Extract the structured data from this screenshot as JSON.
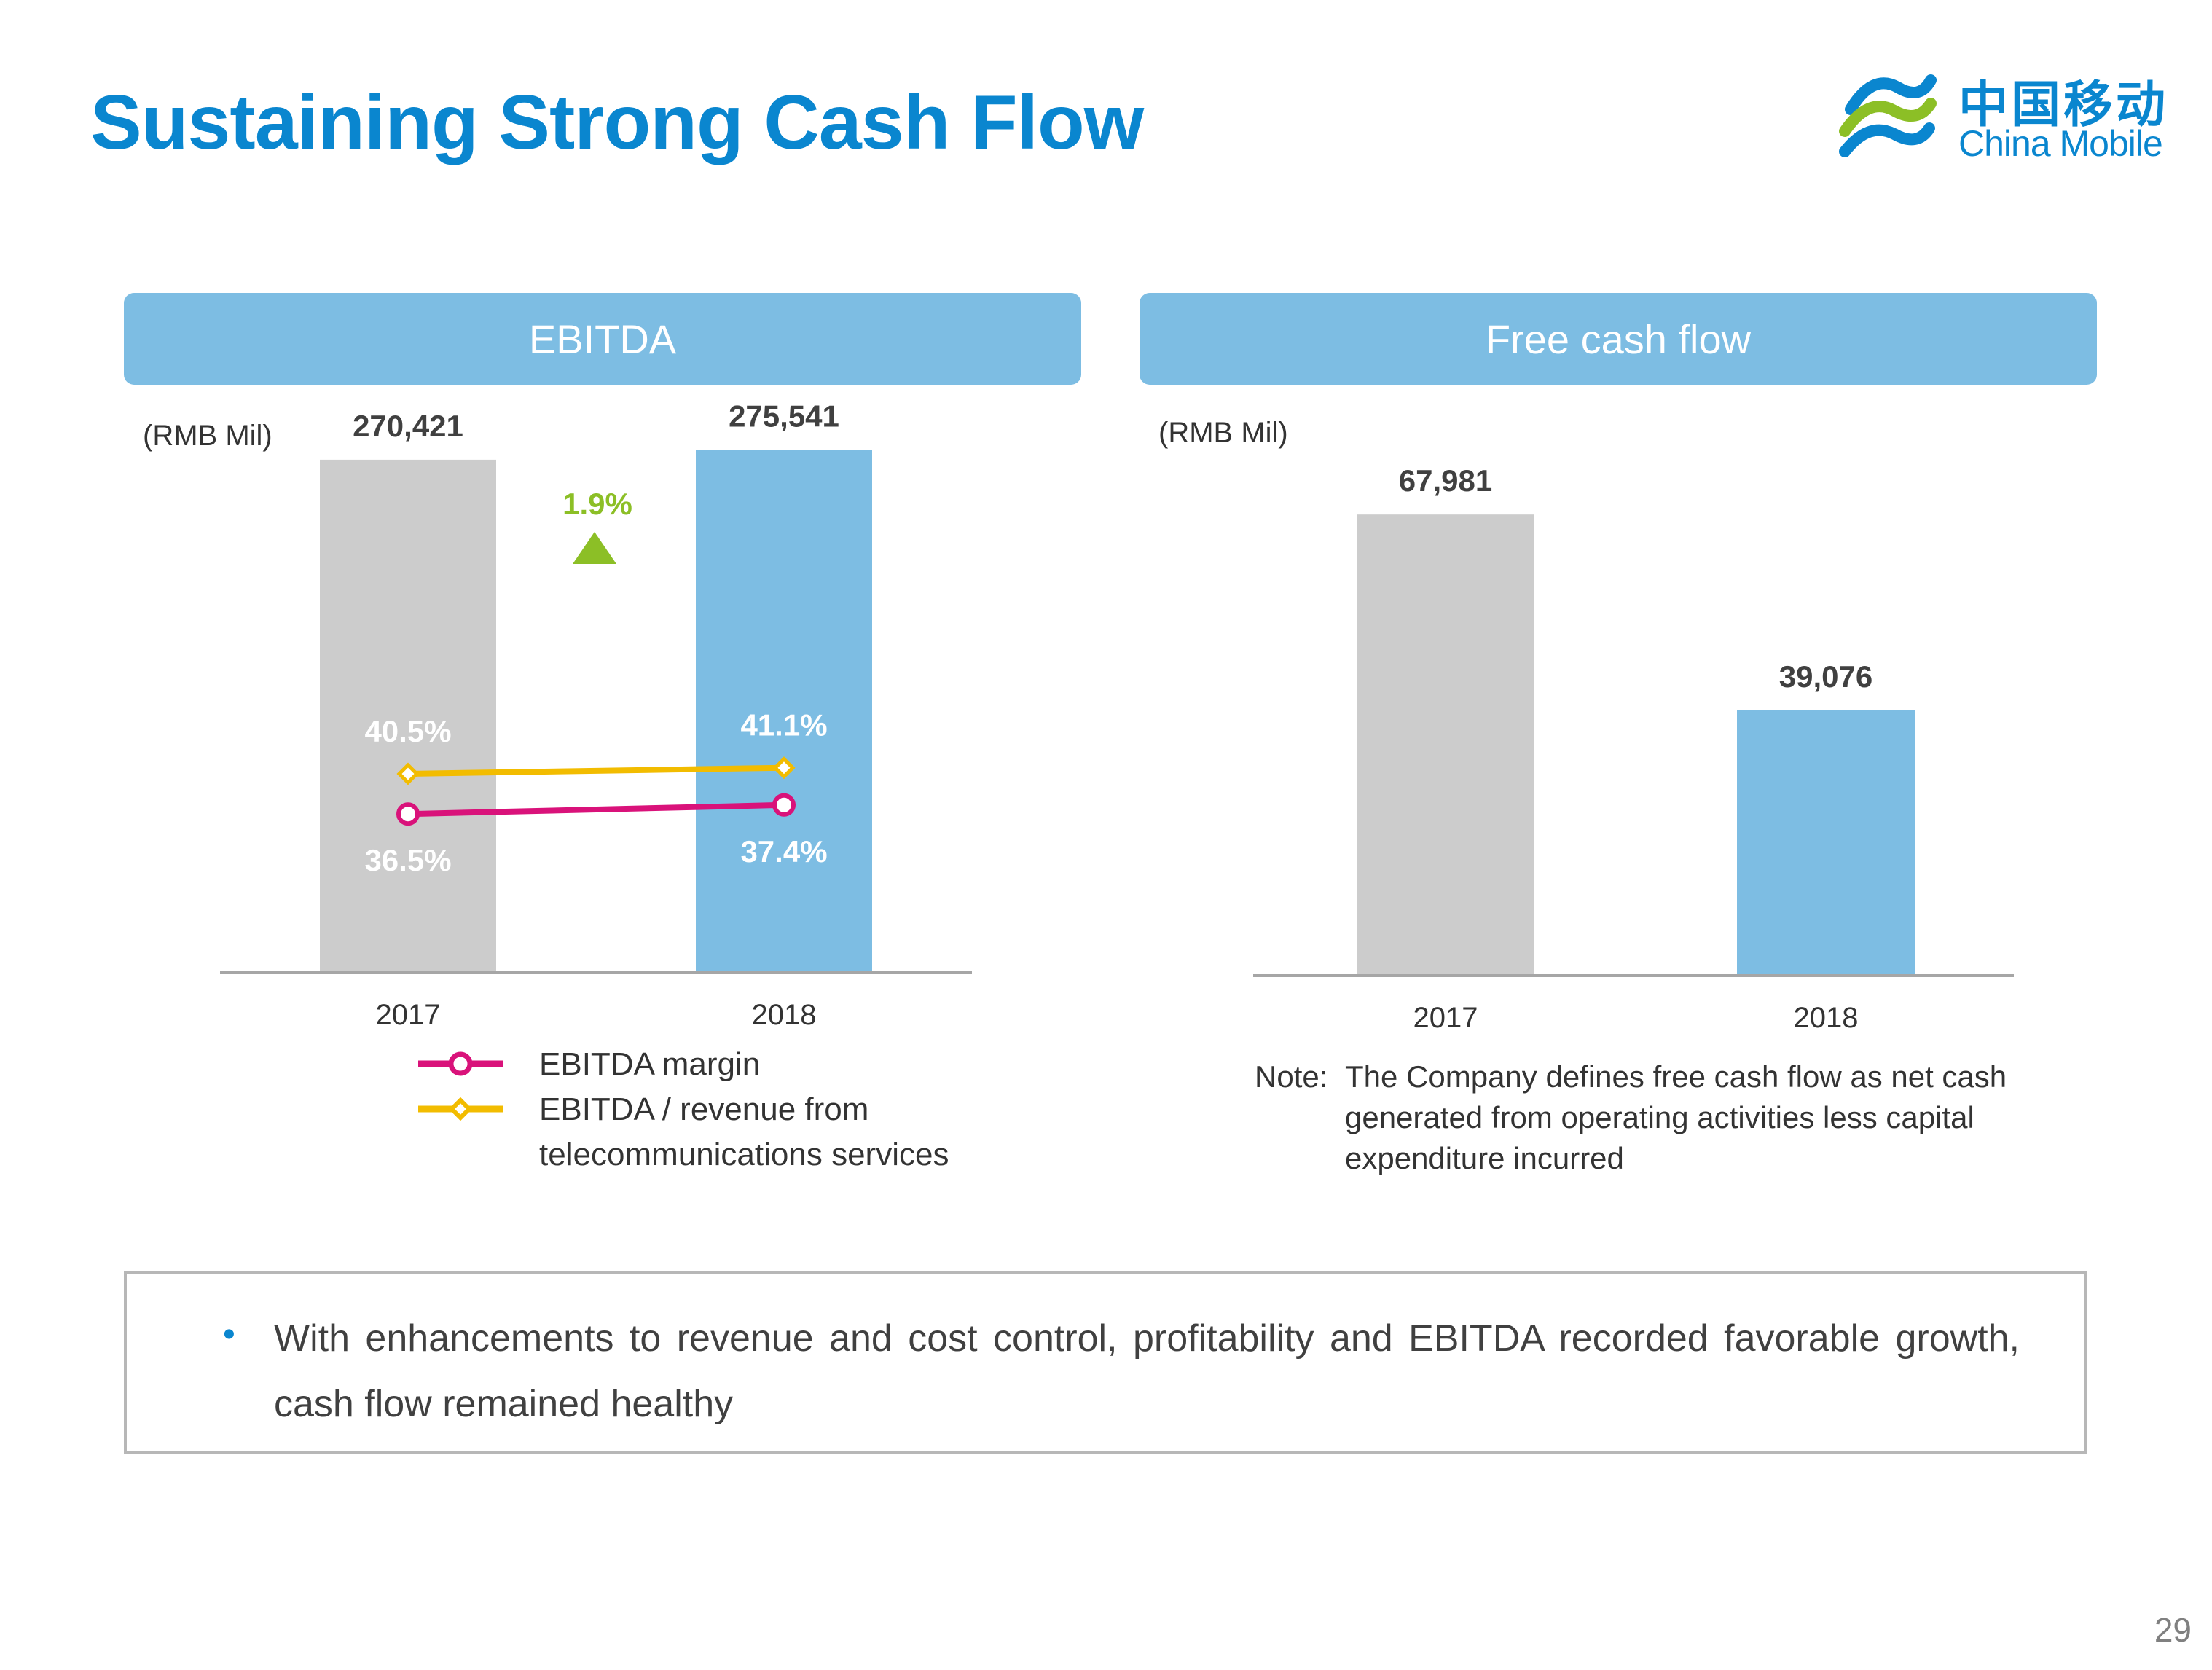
{
  "title": "Sustaining Strong Cash Flow",
  "logo": {
    "cn": "中国移动",
    "en": "China Mobile"
  },
  "page_number": "29",
  "colors": {
    "title_blue": "#0a86cf",
    "header_blue": "#7dbde3",
    "bar_gray": "#cccccc",
    "bar_blue": "#7dbde3",
    "margin_line": "#d9127a",
    "ratio_line": "#f2bc00",
    "growth_green": "#8cbf26"
  },
  "ebitda_panel": {
    "header": "EBITDA",
    "unit": "(RMB Mil)"
  },
  "fcf_panel": {
    "header": "Free cash flow",
    "unit": "(RMB Mil)"
  },
  "legend": [
    {
      "label": "EBITDA margin",
      "color": "#d9127a",
      "marker": "circle"
    },
    {
      "label": "EBITDA / revenue from\ntelecommunications  services",
      "color": "#f2bc00",
      "marker": "diamond"
    }
  ],
  "note": {
    "label": "Note:",
    "text": "The Company defines free cash flow as net cash generated from operating activities less capital expenditure incurred"
  },
  "summary": "With enhancements to revenue and cost control, profitability and EBITDA recorded favorable growth, cash flow remained healthy",
  "chart_data": [
    {
      "type": "bar",
      "categories": [
        "2017",
        "2018"
      ],
      "series": [
        {
          "values": [
            270421,
            275541
          ],
          "labels": [
            "270,421",
            "275,541"
          ],
          "colors": [
            "#cccccc",
            "#7dbde3"
          ]
        }
      ],
      "ylim": [
        0,
        290000
      ],
      "growth": {
        "label": "1.9%",
        "marker": "triangle-up"
      },
      "lines": [
        {
          "name": "EBITDA / revenue from telecommunications  services",
          "values": [
            40.5,
            41.1
          ],
          "labels": [
            "40.5%",
            "41.1%"
          ],
          "marker": "diamond"
        },
        {
          "name": "EBITDA margin",
          "values": [
            36.5,
            37.4
          ],
          "labels": [
            "36.5%",
            "37.4%"
          ],
          "marker": "circle"
        }
      ]
    },
    {
      "type": "bar",
      "categories": [
        "2017",
        "2018"
      ],
      "series": [
        {
          "values": [
            67981,
            39076
          ],
          "labels": [
            "67,981",
            "39,076"
          ],
          "colors": [
            "#cccccc",
            "#7dbde3"
          ]
        }
      ],
      "ylim": [
        0,
        68000
      ]
    }
  ]
}
